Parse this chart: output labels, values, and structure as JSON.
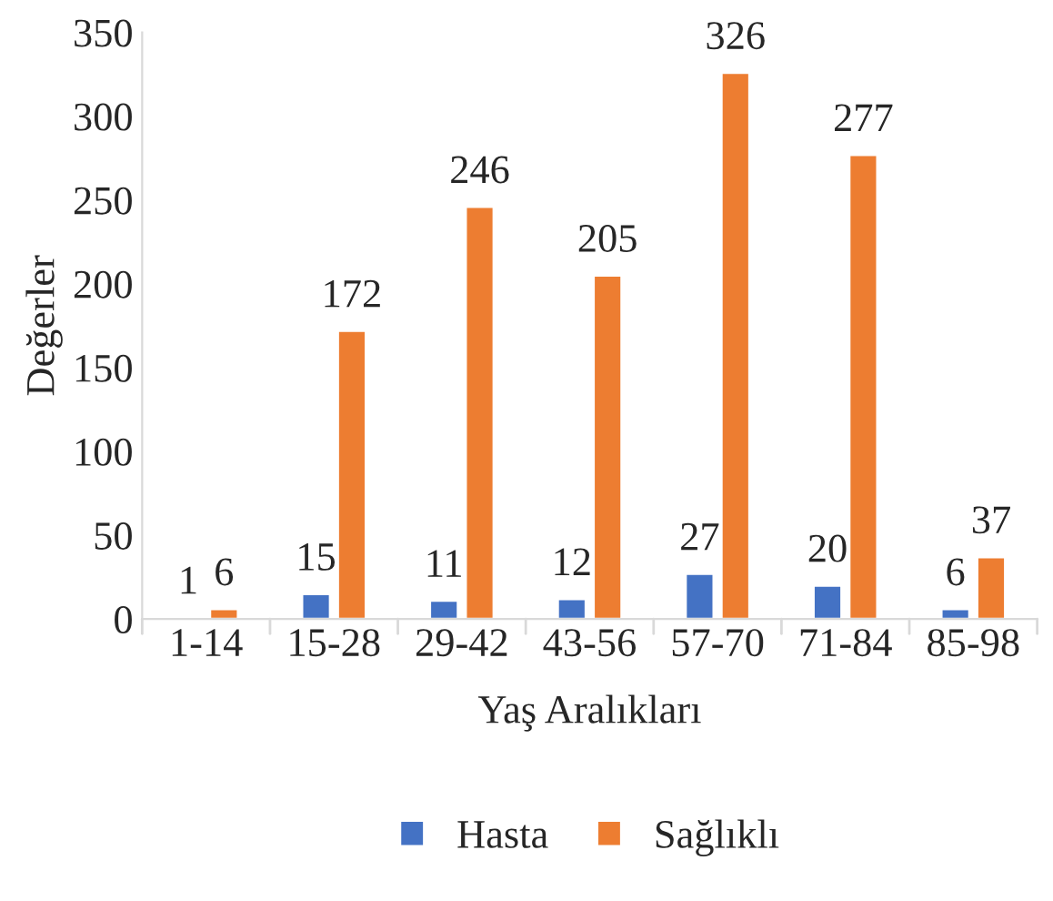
{
  "chart_data": {
    "type": "bar",
    "xlabel": "Yaş Aralıkları",
    "ylabel": "Değerler",
    "categories": [
      "1-14",
      "15-28",
      "29-42",
      "43-56",
      "57-70",
      "71-84",
      "85-98"
    ],
    "series": [
      {
        "name": "Hasta",
        "color": "#4472c4",
        "values": [
          1,
          15,
          11,
          12,
          27,
          20,
          6
        ]
      },
      {
        "name": "Sağlıklı",
        "color": "#ed7d31",
        "values": [
          6,
          172,
          246,
          205,
          326,
          277,
          37
        ]
      }
    ],
    "ylim": [
      0,
      350
    ],
    "yticks": [
      0,
      50,
      100,
      150,
      200,
      250,
      300,
      350
    ],
    "data_labels": true,
    "legend": "bottom",
    "grid": false
  }
}
